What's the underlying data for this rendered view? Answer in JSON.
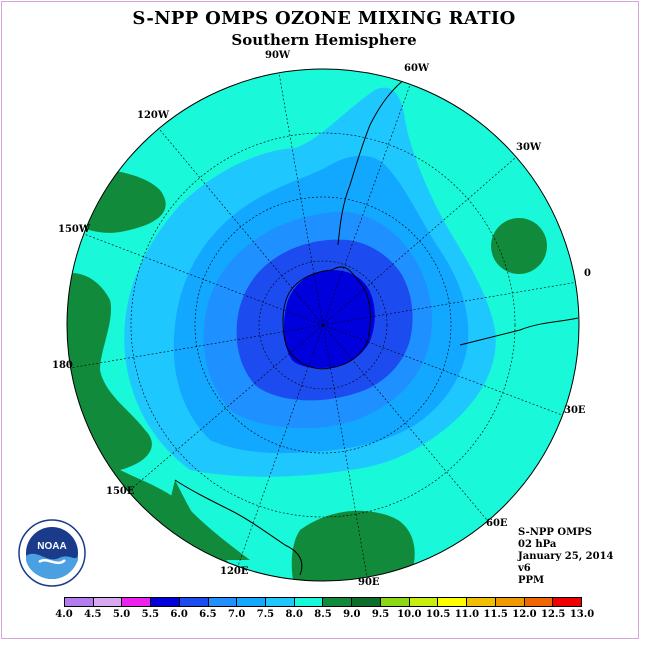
{
  "title": "S-NPP OMPS OZONE MIXING RATIO",
  "subtitle": "Southern Hemisphere",
  "longitude_labels": [
    "90W",
    "60W",
    "30W",
    "0",
    "30E",
    "60E",
    "90E",
    "120E",
    "150E",
    "180",
    "150W",
    "120W"
  ],
  "info": {
    "instrument": "S-NPP OMPS",
    "level": "02 hPa",
    "date": "January 25, 2014",
    "version": "v6",
    "units": "PPM"
  },
  "logo_text": "NOAA",
  "colorbar": {
    "ticks": [
      "4.0",
      "4.5",
      "5.0",
      "5.5",
      "6.0",
      "6.5",
      "7.0",
      "7.5",
      "8.0",
      "8.5",
      "9.0",
      "9.5",
      "10.0",
      "10.5",
      "11.0",
      "11.5",
      "12.0",
      "12.5",
      "13.0"
    ],
    "colors": [
      "#b47cf0",
      "#d8a8f0",
      "#ee22ee",
      "#0000dd",
      "#1c4cf0",
      "#1e90ff",
      "#12a8ff",
      "#1ec8ff",
      "#19f8d8",
      "#118a3c",
      "#0c6e2a",
      "#8cd814",
      "#c8ee10",
      "#ffff00",
      "#f0c000",
      "#f09800",
      "#f06600",
      "#ee0000",
      "#8c4a2c"
    ]
  },
  "map_colors": {
    "level_8_0": "#19f8d8",
    "level_7_5": "#1ec8ff",
    "level_7_0": "#12a8ff",
    "level_6_5": "#1e90ff",
    "level_6_0": "#1c4cf0",
    "level_5_5": "#0000dd",
    "level_8_5": "#118a3c"
  }
}
